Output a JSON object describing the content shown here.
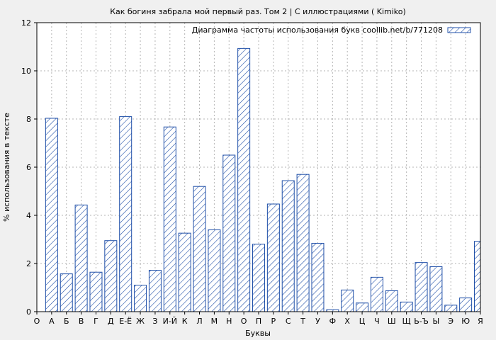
{
  "chart_data": {
    "type": "bar",
    "title": "Как богиня забрала мой первый раз. Том 2 | С иллюстрациями ( Kimiko)",
    "xlabel": "Буквы",
    "ylabel": "% использования в тексте",
    "legend": "Диаграмма частоты использования букв coollib.net/b/771208",
    "legend_position": "top-right",
    "ylim": [
      0,
      12
    ],
    "yticks": [
      0,
      2,
      4,
      6,
      8,
      10,
      12
    ],
    "grid": true,
    "colors": {
      "bar_stroke": "#1f4fa8",
      "hatch": "#1f4fa8",
      "background": "#f0f0f0",
      "plot_bg": "#ffffff"
    },
    "categories": [
      "О",
      "А",
      "Б",
      "В",
      "Г",
      "Д",
      "Е-Ё",
      "Ж",
      "З",
      "И-Й",
      "К",
      "Л",
      "М",
      "Н",
      "О",
      "П",
      "Р",
      "С",
      "Т",
      "У",
      "Ф",
      "Х",
      "Ц",
      "Ч",
      "Ш",
      "Щ",
      "Ь-Ъ",
      "Ы",
      "Э",
      "Ю",
      "Я"
    ],
    "values": [
      null,
      8.03,
      1.57,
      4.43,
      1.64,
      2.95,
      8.1,
      1.1,
      1.72,
      7.67,
      3.26,
      5.2,
      3.4,
      6.5,
      10.93,
      2.8,
      4.47,
      5.44,
      5.7,
      2.84,
      0.08,
      0.9,
      0.36,
      1.43,
      0.87,
      0.4,
      2.04,
      1.87,
      0.27,
      0.57,
      2.92
    ]
  }
}
